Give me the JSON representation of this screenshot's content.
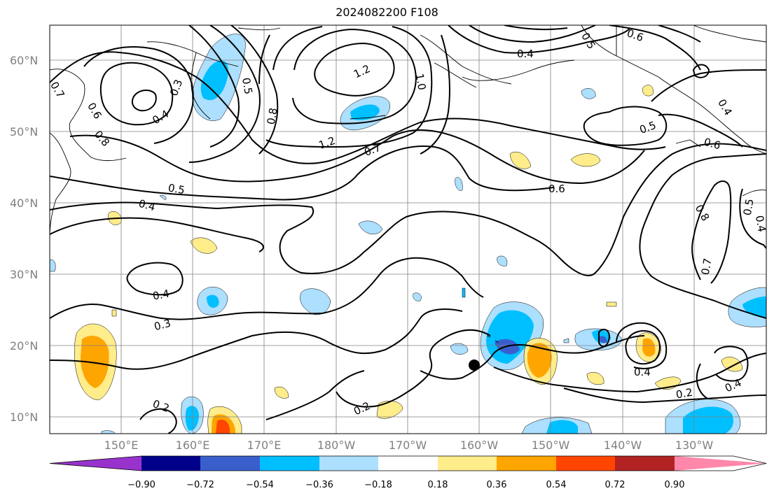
{
  "title": "2024082200 F108",
  "lat_labels": [
    "60°N",
    "50°N",
    "40°N",
    "30°N",
    "20°N",
    "10°N"
  ],
  "lon_labels": [
    "150°E",
    "160°E",
    "170°E",
    "180°W",
    "170°W",
    "160°W",
    "150°W",
    "140°W",
    "130°W"
  ],
  "colorbar": {
    "tick_labels": [
      "−0.90",
      "−0.72",
      "−0.54",
      "−0.36",
      "−0.18",
      "0.18",
      "0.36",
      "0.54",
      "0.72",
      "0.90"
    ],
    "colors": [
      "#9932CC",
      "#00008B",
      "#3A5FCD",
      "#00BFFF",
      "#ADDFFF",
      "#FFFFFF",
      "#FFEC8B",
      "#FFA500",
      "#FF4500",
      "#B22222",
      "#FF88AA"
    ]
  },
  "contour_labels": [
    "0.7",
    "0.6",
    "0.8",
    "0.3",
    "0.4",
    "0.5",
    "0.8",
    "1.2",
    "1.0",
    "1.2",
    "0.7",
    "0.5",
    "0.4",
    "0.6",
    "0.5",
    "0.6",
    "0.4",
    "0.5",
    "0.4",
    "0.6",
    "0.8",
    "0.5",
    "0.4",
    "0.7",
    "0.4",
    "0.3",
    "0.2",
    "0.2",
    "0.4",
    "0.2",
    "0.4"
  ]
}
